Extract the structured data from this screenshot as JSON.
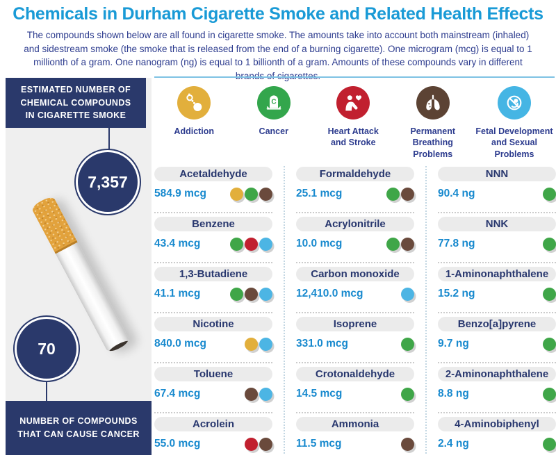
{
  "title": "Chemicals in Durham Cigarette Smoke and Related Health Effects",
  "subtitle": "The compounds shown below are all found in cigarette smoke. The amounts take into account both mainstream (inhaled) and sidestream smoke (the smoke that is released from the end of a burning cigarette). One microgram (mcg) is equal to 1 millionth of a gram. One nanogram (ng) is equal to 1 billionth of a gram. Amounts of these compounds vary in different brands of cigarettes.",
  "sidebar": {
    "top_label": "ESTIMATED NUMBER OF CHEMICAL COMPOUNDS IN CIGARETTE SMOKE",
    "top_value": "7,357",
    "bottom_value": "70",
    "bottom_label": "NUMBER OF COMPOUNDS THAT CAN CAUSE CANCER"
  },
  "legend": [
    {
      "key": "addiction",
      "label": "Addiction",
      "color": "#E2AF3C",
      "icon": "ball-and-chain-icon"
    },
    {
      "key": "cancer",
      "label": "Cancer",
      "color": "#33A64C",
      "icon": "tombstone-icon"
    },
    {
      "key": "heart",
      "label": "Heart Attack and Stroke",
      "color": "#C1202F",
      "icon": "heart-attack-icon"
    },
    {
      "key": "breathing",
      "label": "Permanent Breathing Problems",
      "color": "#5C4334",
      "icon": "lungs-icon"
    },
    {
      "key": "fetal",
      "label": "Fetal Development and Sexual Problems",
      "color": "#45B5E4",
      "icon": "fetus-crossed-icon"
    }
  ],
  "effect_colors": {
    "addiction": "#E2AF3C",
    "cancer": "#3FA648",
    "heart": "#C1202F",
    "breathing": "#6A4A3C",
    "fetal": "#4CB5E4"
  },
  "colors": {
    "title_blue": "#199AD6",
    "text_indigo": "#2C3B8E",
    "deep_navy": "#2A396B",
    "amount_blue": "#1789CE",
    "pill_gray": "#EBEBEB",
    "sidebar_gray": "#EFEFEF",
    "rule_blue": "#7EC2E4"
  },
  "columns": [
    [
      {
        "name": "Acetaldehyde",
        "amount": "584.9 mcg",
        "effects": [
          "addiction",
          "cancer",
          "breathing"
        ]
      },
      {
        "name": "Benzene",
        "amount": "43.4 mcg",
        "effects": [
          "cancer",
          "heart",
          "fetal"
        ]
      },
      {
        "name": "1,3-Butadiene",
        "amount": "41.1 mcg",
        "effects": [
          "cancer",
          "breathing",
          "fetal"
        ]
      },
      {
        "name": "Nicotine",
        "amount": "840.0 mcg",
        "effects": [
          "addiction",
          "fetal"
        ]
      },
      {
        "name": "Toluene",
        "amount": "67.4 mcg",
        "effects": [
          "breathing",
          "fetal"
        ]
      },
      {
        "name": "Acrolein",
        "amount": "55.0 mcg",
        "effects": [
          "heart",
          "breathing"
        ]
      }
    ],
    [
      {
        "name": "Formaldehyde",
        "amount": "25.1 mcg",
        "effects": [
          "cancer",
          "breathing"
        ]
      },
      {
        "name": "Acrylonitrile",
        "amount": "10.0 mcg",
        "effects": [
          "cancer",
          "breathing"
        ]
      },
      {
        "name": "Carbon monoxide",
        "amount": "12,410.0 mcg",
        "effects": [
          "fetal"
        ]
      },
      {
        "name": "Isoprene",
        "amount": "331.0 mcg",
        "effects": [
          "cancer"
        ]
      },
      {
        "name": "Crotonaldehyde",
        "amount": "14.5 mcg",
        "effects": [
          "cancer"
        ]
      },
      {
        "name": "Ammonia",
        "amount": "11.5 mcg",
        "effects": [
          "breathing"
        ]
      }
    ],
    [
      {
        "name": "NNN",
        "amount": "90.4 ng",
        "effects": [
          "cancer"
        ]
      },
      {
        "name": "NNK",
        "amount": "77.8 ng",
        "effects": [
          "cancer"
        ]
      },
      {
        "name": "1-Aminonaphthalene",
        "amount": "15.2 ng",
        "effects": [
          "cancer"
        ]
      },
      {
        "name": "Benzo[a]pyrene",
        "amount": "9.7 ng",
        "effects": [
          "cancer"
        ]
      },
      {
        "name": "2-Aminonaphthalene",
        "amount": "8.8 ng",
        "effects": [
          "cancer"
        ]
      },
      {
        "name": "4-Aminobiphenyl",
        "amount": "2.4 ng",
        "effects": [
          "cancer"
        ]
      }
    ]
  ],
  "chart_data": {
    "type": "table",
    "title": "Chemicals in Durham Cigarette Smoke and Related Health Effects",
    "columns": [
      "chemical",
      "amount",
      "unit",
      "health_effects"
    ],
    "rows": [
      [
        "Acetaldehyde",
        584.9,
        "mcg",
        [
          "Addiction",
          "Cancer",
          "Permanent Breathing Problems"
        ]
      ],
      [
        "Benzene",
        43.4,
        "mcg",
        [
          "Cancer",
          "Heart Attack and Stroke",
          "Fetal Development and Sexual Problems"
        ]
      ],
      [
        "1,3-Butadiene",
        41.1,
        "mcg",
        [
          "Cancer",
          "Permanent Breathing Problems",
          "Fetal Development and Sexual Problems"
        ]
      ],
      [
        "Nicotine",
        840.0,
        "mcg",
        [
          "Addiction",
          "Fetal Development and Sexual Problems"
        ]
      ],
      [
        "Toluene",
        67.4,
        "mcg",
        [
          "Permanent Breathing Problems",
          "Fetal Development and Sexual Problems"
        ]
      ],
      [
        "Acrolein",
        55.0,
        "mcg",
        [
          "Heart Attack and Stroke",
          "Permanent Breathing Problems"
        ]
      ],
      [
        "Formaldehyde",
        25.1,
        "mcg",
        [
          "Cancer",
          "Permanent Breathing Problems"
        ]
      ],
      [
        "Acrylonitrile",
        10.0,
        "mcg",
        [
          "Cancer",
          "Permanent Breathing Problems"
        ]
      ],
      [
        "Carbon monoxide",
        12410.0,
        "mcg",
        [
          "Fetal Development and Sexual Problems"
        ]
      ],
      [
        "Isoprene",
        331.0,
        "mcg",
        [
          "Cancer"
        ]
      ],
      [
        "Crotonaldehyde",
        14.5,
        "mcg",
        [
          "Cancer"
        ]
      ],
      [
        "Ammonia",
        11.5,
        "mcg",
        [
          "Permanent Breathing Problems"
        ]
      ],
      [
        "NNN",
        90.4,
        "ng",
        [
          "Cancer"
        ]
      ],
      [
        "NNK",
        77.8,
        "ng",
        [
          "Cancer"
        ]
      ],
      [
        "1-Aminonaphthalene",
        15.2,
        "ng",
        [
          "Cancer"
        ]
      ],
      [
        "Benzo[a]pyrene",
        9.7,
        "ng",
        [
          "Cancer"
        ]
      ],
      [
        "2-Aminonaphthalene",
        8.8,
        "ng",
        [
          "Cancer"
        ]
      ],
      [
        "4-Aminobiphenyl",
        2.4,
        "ng",
        [
          "Cancer"
        ]
      ]
    ],
    "callouts": {
      "estimated_number_of_chemical_compounds_in_cigarette_smoke": 7357,
      "number_of_compounds_that_can_cause_cancer": 70
    }
  }
}
